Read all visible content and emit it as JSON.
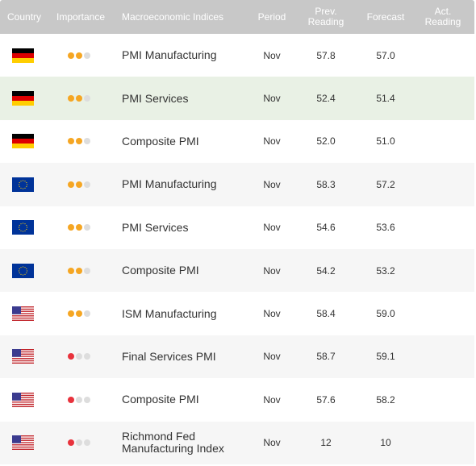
{
  "colors": {
    "header_bg": "#c8c8c8",
    "dot_orange": "#f5a623",
    "dot_red": "#e8323c",
    "dot_empty": "#dddddd",
    "highlight_row": "#e9f1e5",
    "alt_row": "#f6f6f6"
  },
  "header": {
    "country": "Country",
    "importance": "Importance",
    "indices": "Macroeconomic Indices",
    "period": "Period",
    "prev_line1": "Prev.",
    "prev_line2": "Reading",
    "forecast": "Forecast",
    "act_line1": "Act.",
    "act_line2": "Reading"
  },
  "rows": [
    {
      "country": "germany",
      "flag_icon": "germany-flag-icon",
      "importance_level": 2,
      "importance_color": "orange",
      "name": "PMI Manufacturing",
      "period": "Nov",
      "prev": "57.8",
      "forecast": "57.0",
      "actual": ""
    },
    {
      "country": "germany",
      "flag_icon": "germany-flag-icon",
      "importance_level": 2,
      "importance_color": "orange",
      "name": "PMI Services",
      "period": "Nov",
      "prev": "52.4",
      "forecast": "51.4",
      "actual": ""
    },
    {
      "country": "germany",
      "flag_icon": "germany-flag-icon",
      "importance_level": 2,
      "importance_color": "orange",
      "name": "Composite PMI",
      "period": "Nov",
      "prev": "52.0",
      "forecast": "51.0",
      "actual": ""
    },
    {
      "country": "eu",
      "flag_icon": "eu-flag-icon",
      "importance_level": 2,
      "importance_color": "orange",
      "name": "PMI Manufacturing",
      "period": "Nov",
      "prev": "58.3",
      "forecast": "57.2",
      "actual": ""
    },
    {
      "country": "eu",
      "flag_icon": "eu-flag-icon",
      "importance_level": 2,
      "importance_color": "orange",
      "name": "PMI Services",
      "period": "Nov",
      "prev": "54.6",
      "forecast": "53.6",
      "actual": ""
    },
    {
      "country": "eu",
      "flag_icon": "eu-flag-icon",
      "importance_level": 2,
      "importance_color": "orange",
      "name": "Composite PMI",
      "period": "Nov",
      "prev": "54.2",
      "forecast": "53.2",
      "actual": ""
    },
    {
      "country": "usa",
      "flag_icon": "usa-flag-icon",
      "importance_level": 2,
      "importance_color": "orange",
      "name": "ISM Manufacturing",
      "period": "Nov",
      "prev": "58.4",
      "forecast": "59.0",
      "actual": ""
    },
    {
      "country": "usa",
      "flag_icon": "usa-flag-icon",
      "importance_level": 1,
      "importance_color": "red",
      "name": "Final Services PMI",
      "period": "Nov",
      "prev": "58.7",
      "forecast": "59.1",
      "actual": ""
    },
    {
      "country": "usa",
      "flag_icon": "usa-flag-icon",
      "importance_level": 1,
      "importance_color": "red",
      "name": "Composite PMI",
      "period": "Nov",
      "prev": "57.6",
      "forecast": "58.2",
      "actual": ""
    },
    {
      "country": "usa",
      "flag_icon": "usa-flag-icon",
      "importance_level": 1,
      "importance_color": "red",
      "name": "Richmond Fed Manufacturing Index",
      "period": "Nov",
      "prev": "12",
      "forecast": "10",
      "actual": ""
    }
  ]
}
